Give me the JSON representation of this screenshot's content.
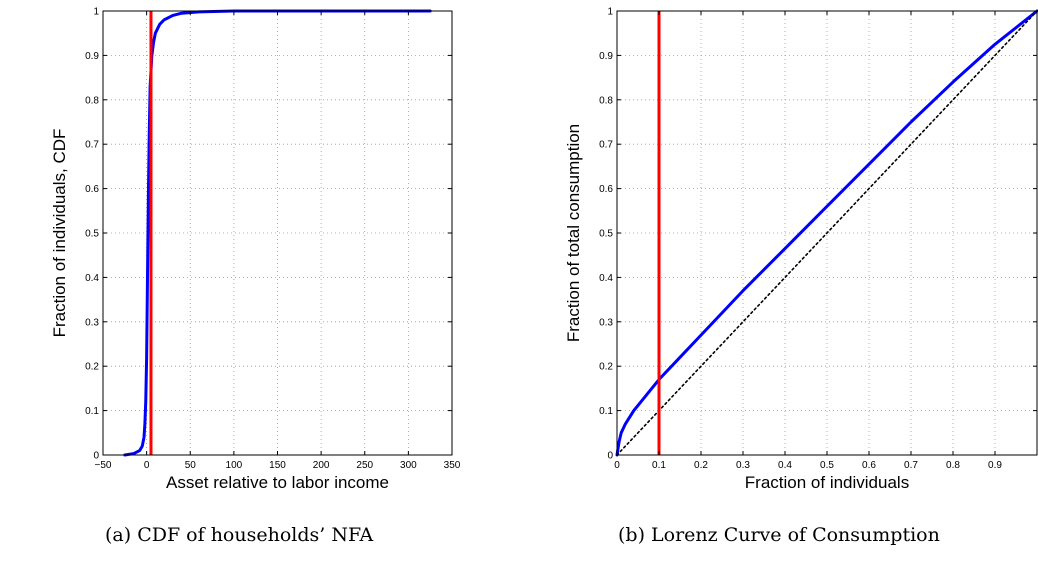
{
  "chart_data": [
    {
      "type": "line",
      "xlabel": "Asset relative to labor income",
      "ylabel": "Fraction of individuals, CDF",
      "xlim": [
        -50,
        350
      ],
      "ylim": [
        0,
        1
      ],
      "xticks": [
        -50,
        0,
        50,
        100,
        150,
        200,
        250,
        300,
        350
      ],
      "yticks": [
        0,
        0.1,
        0.2,
        0.3,
        0.4,
        0.5,
        0.6,
        0.7,
        0.8,
        0.9,
        1
      ],
      "xtick_labels": [
        "−50",
        "0",
        "50",
        "100",
        "150",
        "200",
        "250",
        "300",
        "350"
      ],
      "ytick_labels": [
        "0",
        "0.1",
        "0.2",
        "0.3",
        "0.4",
        "0.5",
        "0.6",
        "0.7",
        "0.8",
        "0.9",
        "1"
      ],
      "grid": true,
      "series": [
        {
          "color": "#0000ff",
          "x": [
            -25,
            -15,
            -8,
            -5,
            -3,
            -2,
            -1,
            0,
            1,
            2,
            3,
            4,
            6,
            8,
            10,
            15,
            20,
            30,
            40,
            60,
            100,
            200,
            325
          ],
          "y": [
            0,
            0.003,
            0.01,
            0.02,
            0.04,
            0.07,
            0.12,
            0.22,
            0.4,
            0.58,
            0.72,
            0.83,
            0.9,
            0.93,
            0.95,
            0.97,
            0.98,
            0.99,
            0.995,
            0.998,
            1,
            1,
            1
          ]
        }
      ],
      "vlines": [
        {
          "x": 5,
          "color": "#ff0000"
        }
      ],
      "caption": "(a)  CDF of households’ NFA"
    },
    {
      "type": "line",
      "xlabel": "Fraction of individuals",
      "ylabel": "Fraction of total consumption",
      "xlim": [
        0,
        1
      ],
      "ylim": [
        0,
        1
      ],
      "xticks": [
        0,
        0.1,
        0.2,
        0.3,
        0.4,
        0.5,
        0.6,
        0.7,
        0.8,
        0.9,
        1
      ],
      "yticks": [
        0,
        0.1,
        0.2,
        0.3,
        0.4,
        0.5,
        0.6,
        0.7,
        0.8,
        0.9,
        1
      ],
      "xtick_labels": [
        "0",
        "0.1",
        "0.2",
        "0.3",
        "0.4",
        "0.5",
        "0.6",
        "0.7",
        "0.8",
        "0.9",
        ""
      ],
      "ytick_labels": [
        "0",
        "0.1",
        "0.2",
        "0.3",
        "0.4",
        "0.5",
        "0.6",
        "0.7",
        "0.8",
        "0.9",
        "1"
      ],
      "grid": true,
      "series": [
        {
          "color": "#0000ff",
          "x": [
            0,
            0.005,
            0.01,
            0.02,
            0.04,
            0.07,
            0.1,
            0.15,
            0.2,
            0.3,
            0.4,
            0.5,
            0.6,
            0.7,
            0.8,
            0.9,
            1
          ],
          "y": [
            0,
            0.03,
            0.05,
            0.07,
            0.1,
            0.135,
            0.17,
            0.22,
            0.27,
            0.37,
            0.465,
            0.56,
            0.655,
            0.75,
            0.84,
            0.925,
            1
          ]
        },
        {
          "color": "#000000",
          "dashed": true,
          "x": [
            0,
            1
          ],
          "y": [
            0,
            1
          ]
        }
      ],
      "vlines": [
        {
          "x": 0.1,
          "color": "#ff0000"
        }
      ],
      "caption": "(b)  Lorenz Curve of Consumption"
    }
  ]
}
